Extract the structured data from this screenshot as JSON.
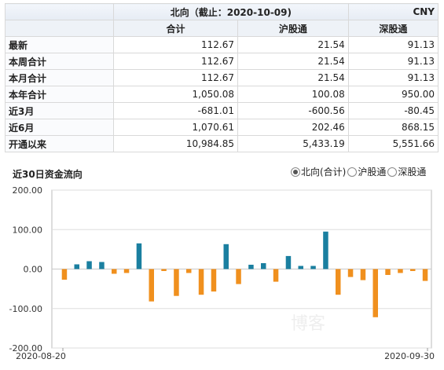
{
  "table": {
    "title": "北向（截止：2020-10-09)",
    "currency": "CNY",
    "columns": [
      "合计",
      "沪股通",
      "深股通"
    ],
    "rows": [
      {
        "label": "最新",
        "values": [
          "112.67",
          "21.54",
          "91.13"
        ]
      },
      {
        "label": "本周合计",
        "values": [
          "112.67",
          "21.54",
          "91.13"
        ]
      },
      {
        "label": "本月合计",
        "values": [
          "112.67",
          "21.54",
          "91.13"
        ]
      },
      {
        "label": "本年合计",
        "values": [
          "1,050.08",
          "100.08",
          "950.00"
        ]
      },
      {
        "label": "近3月",
        "values": [
          "-681.01",
          "-600.56",
          "-80.45"
        ]
      },
      {
        "label": "近6月",
        "values": [
          "1,070.61",
          "202.46",
          "868.15"
        ]
      },
      {
        "label": "开通以来",
        "values": [
          "10,984.85",
          "5,433.19",
          "5,551.66"
        ]
      }
    ]
  },
  "chart_section": {
    "title": "近30日资金流向",
    "options": [
      {
        "label": "北向(合计)",
        "selected": true
      },
      {
        "label": "沪股通",
        "selected": false
      },
      {
        "label": "深股通",
        "selected": false
      }
    ]
  },
  "watermark": "博客",
  "chart_data": {
    "type": "bar",
    "ylim": [
      -200,
      200
    ],
    "yticks": [
      "200.00",
      "100.00",
      "0.00",
      "-100.00",
      "-200.00"
    ],
    "x_start_label": "2020-08-20",
    "x_end_label": "2020-09-30",
    "colors": {
      "positive": "#1a7fa0",
      "negative": "#f0901e"
    },
    "values": [
      -27,
      12,
      20,
      18,
      -12,
      -10,
      65,
      -82,
      -5,
      -68,
      -10,
      -65,
      -57,
      63,
      -38,
      11,
      15,
      -32,
      33,
      8,
      8,
      95,
      -65,
      -20,
      -28,
      -122,
      -15,
      -10,
      -5,
      -30
    ]
  }
}
